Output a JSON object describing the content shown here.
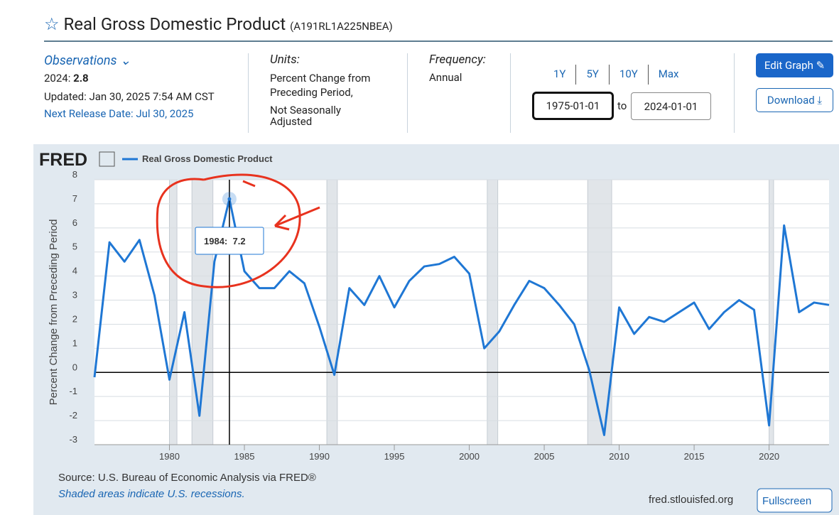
{
  "header": {
    "title": "Real Gross Domestic Product",
    "series_id": "(A191RL1A225NBEA)"
  },
  "observations": {
    "link": "Observations",
    "latest_label": "2024:",
    "latest_value": "2.8",
    "updated": "Updated: Jan 30, 2025 7:54 AM CST",
    "next_release": "Next Release Date: Jul 30, 2025"
  },
  "units": {
    "label": "Units:",
    "line1": "Percent Change from Preceding Period,",
    "line2": "Not Seasonally Adjusted"
  },
  "frequency": {
    "label": "Frequency:",
    "value": "Annual"
  },
  "range_buttons": [
    "1Y",
    "5Y",
    "10Y",
    "Max"
  ],
  "date_range": {
    "start": "1975-01-01",
    "to": "to",
    "end": "2024-01-01"
  },
  "buttons": {
    "edit": "Edit Graph",
    "download": "Download",
    "fullscreen": "Fullscreen"
  },
  "logo": "FRED",
  "footer": {
    "source": "Source: U.S. Bureau of Economic Analysis via FRED®",
    "note": "Shaded areas indicate U.S. recessions.",
    "site": "fred.stlouisfed.org"
  },
  "chart_data": {
    "type": "line",
    "y_label": "Percent Change from Preceding Period",
    "x": [
      1975,
      1976,
      1977,
      1978,
      1979,
      1980,
      1981,
      1982,
      1983,
      1984,
      1985,
      1986,
      1987,
      1988,
      1989,
      1990,
      1991,
      1992,
      1993,
      1994,
      1995,
      1996,
      1997,
      1998,
      1999,
      2000,
      2001,
      2002,
      2003,
      2004,
      2005,
      2006,
      2007,
      2008,
      2009,
      2010,
      2011,
      2012,
      2013,
      2014,
      2015,
      2016,
      2017,
      2018,
      2019,
      2020,
      2021,
      2022,
      2023,
      2024
    ],
    "series": [
      {
        "name": "Real Gross Domestic Product",
        "color": "#1f77d4",
        "values": [
          -0.2,
          5.4,
          4.6,
          5.5,
          3.2,
          -0.3,
          2.5,
          -1.8,
          4.6,
          7.2,
          4.2,
          3.5,
          3.5,
          4.2,
          3.7,
          1.9,
          -0.1,
          3.5,
          2.8,
          4.0,
          2.7,
          3.8,
          4.4,
          4.5,
          4.8,
          4.1,
          1.0,
          1.7,
          2.8,
          3.8,
          3.5,
          2.8,
          2.0,
          0.1,
          -2.6,
          2.7,
          1.6,
          2.3,
          2.1,
          2.5,
          2.9,
          1.8,
          2.5,
          3.0,
          2.6,
          -2.2,
          6.1,
          2.5,
          2.9,
          2.8
        ]
      }
    ],
    "recessions": [
      [
        1980.0,
        1980.5
      ],
      [
        1981.5,
        1982.9
      ],
      [
        1990.5,
        1991.2
      ],
      [
        2001.2,
        2001.9
      ],
      [
        2007.9,
        2009.5
      ],
      [
        2020.0,
        2020.3
      ]
    ],
    "recession_color": "#e1e5e9",
    "xlim": [
      1975,
      2024
    ],
    "xticks": [
      1980,
      1985,
      1990,
      1995,
      2000,
      2005,
      2010,
      2015,
      2020
    ],
    "ylim": [
      -3,
      8
    ],
    "yticks": [
      -3,
      -2,
      -1,
      0,
      1,
      2,
      3,
      4,
      5,
      6,
      7,
      8
    ],
    "grid": true,
    "tooltip": {
      "index": 9,
      "text": "1984:  7.2"
    }
  }
}
